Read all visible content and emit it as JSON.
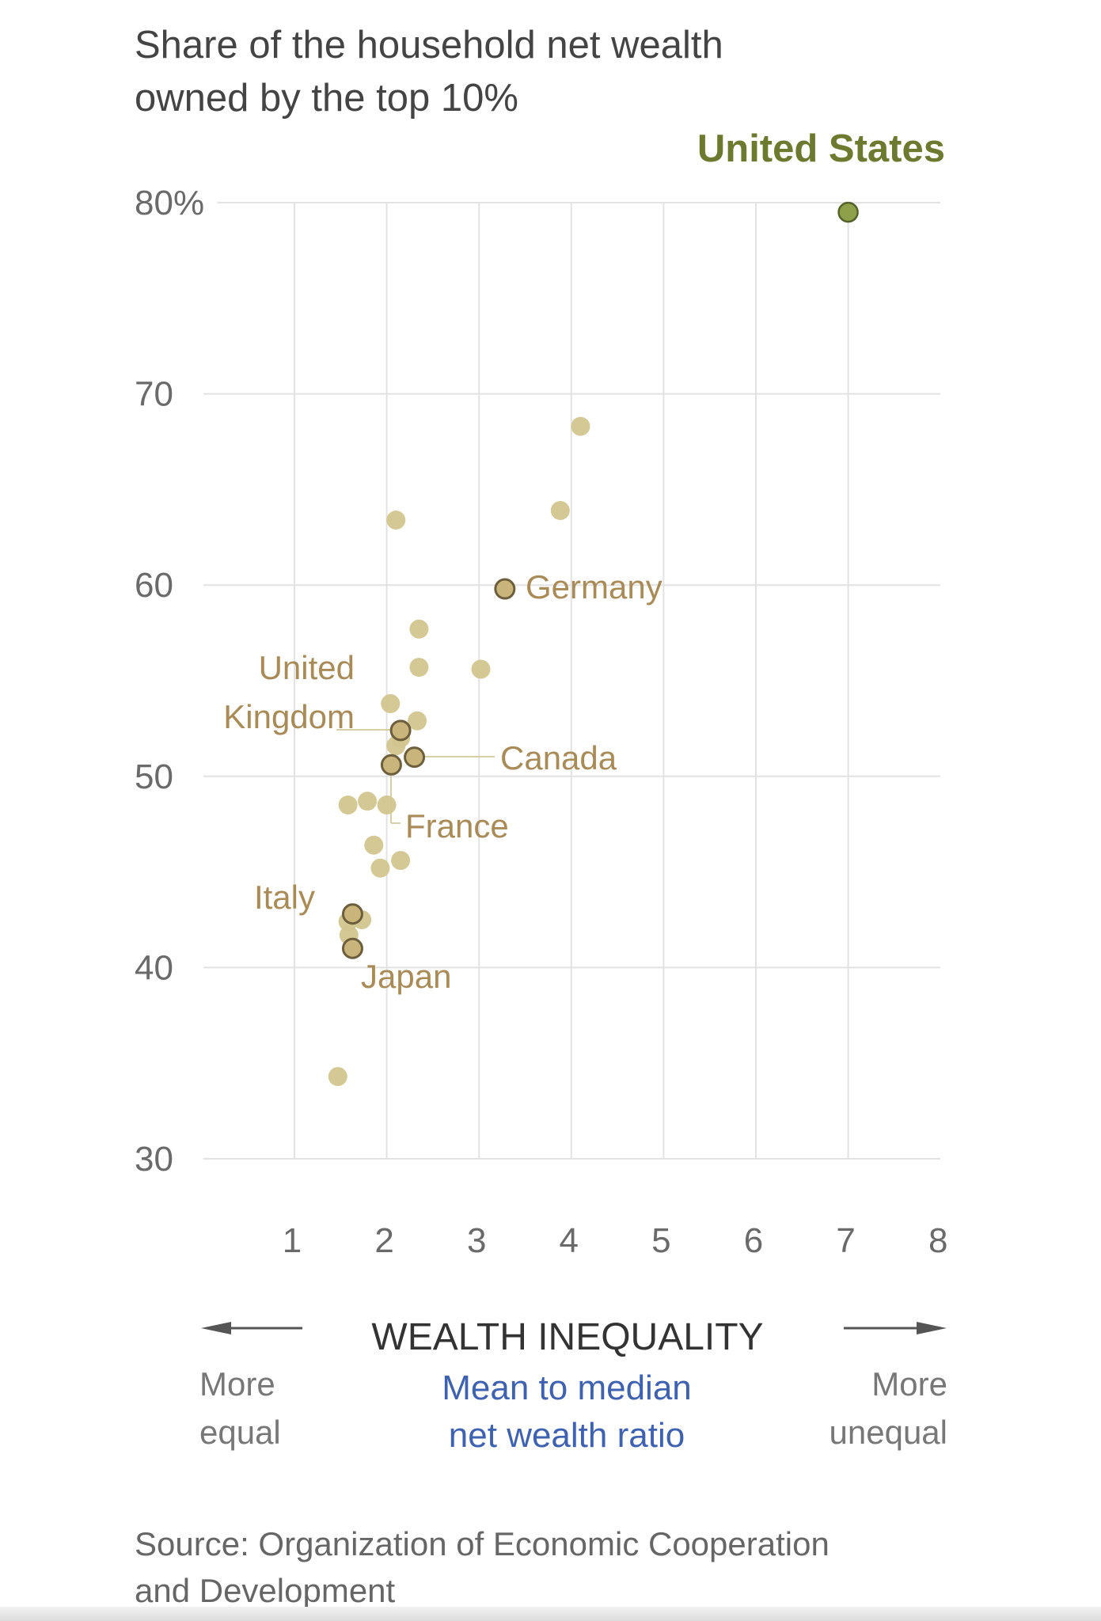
{
  "chart_data": {
    "type": "scatter",
    "title": "Share of the household net wealth owned by the top 10%",
    "title_lines": [
      "Share of the household net wealth",
      "owned by the top 10%"
    ],
    "xlabel": "WEALTH INEQUALITY",
    "xsublabel_lines": [
      "Mean to median",
      "net wealth ratio"
    ],
    "left_note_lines": [
      "More",
      "equal"
    ],
    "right_note_lines": [
      "More",
      "unequal"
    ],
    "xlim": [
      0,
      8
    ],
    "ylim": [
      30,
      80
    ],
    "x_ticks": [
      "1",
      "2",
      "3",
      "4",
      "5",
      "6",
      "7",
      "8"
    ],
    "y_ticks": [
      "80%",
      "70",
      "60",
      "50",
      "40",
      "30"
    ],
    "grid": true,
    "colors": {
      "point": "#d2c58f",
      "highlight_point": "#c9b47c",
      "label": "#a88b56",
      "us": "#6b7a2e",
      "us_point": "#8fa04a",
      "axis_title": "#333333",
      "sublabel": "#3e62b0"
    },
    "points": [
      {
        "x": 7.0,
        "y": 79.5,
        "label": "United States",
        "highlight": "us"
      },
      {
        "x": 4.1,
        "y": 68.3
      },
      {
        "x": 3.88,
        "y": 63.9
      },
      {
        "x": 2.1,
        "y": 63.4
      },
      {
        "x": 3.28,
        "y": 59.8,
        "label": "Germany",
        "highlight": true
      },
      {
        "x": 2.35,
        "y": 57.7
      },
      {
        "x": 2.35,
        "y": 55.7
      },
      {
        "x": 3.02,
        "y": 55.6
      },
      {
        "x": 2.04,
        "y": 53.8
      },
      {
        "x": 2.33,
        "y": 52.9
      },
      {
        "x": 2.1,
        "y": 51.6
      },
      {
        "x": 2.15,
        "y": 52.0
      },
      {
        "x": 2.15,
        "y": 52.4,
        "label": "United Kingdom",
        "highlight": true
      },
      {
        "x": 2.3,
        "y": 51.0,
        "label": "Canada",
        "highlight": true
      },
      {
        "x": 2.05,
        "y": 50.6,
        "label": "France",
        "highlight": true
      },
      {
        "x": 1.58,
        "y": 48.5
      },
      {
        "x": 1.79,
        "y": 48.7
      },
      {
        "x": 2.0,
        "y": 48.5
      },
      {
        "x": 1.86,
        "y": 46.4
      },
      {
        "x": 2.15,
        "y": 45.6
      },
      {
        "x": 1.93,
        "y": 45.2
      },
      {
        "x": 1.73,
        "y": 42.5
      },
      {
        "x": 1.58,
        "y": 42.4
      },
      {
        "x": 1.59,
        "y": 41.7
      },
      {
        "x": 1.63,
        "y": 42.8,
        "label": "Italy",
        "highlight": true
      },
      {
        "x": 1.63,
        "y": 41.0,
        "label": "Japan",
        "highlight": true
      },
      {
        "x": 1.47,
        "y": 34.3
      }
    ],
    "labels": {
      "us": "United States",
      "germany": "Germany",
      "uk_lines": [
        "United",
        "Kingdom"
      ],
      "canada": "Canada",
      "france": "France",
      "italy": "Italy",
      "japan": "Japan"
    },
    "source_lines": [
      "Source: Organization of Economic Cooperation",
      "and Development"
    ]
  }
}
